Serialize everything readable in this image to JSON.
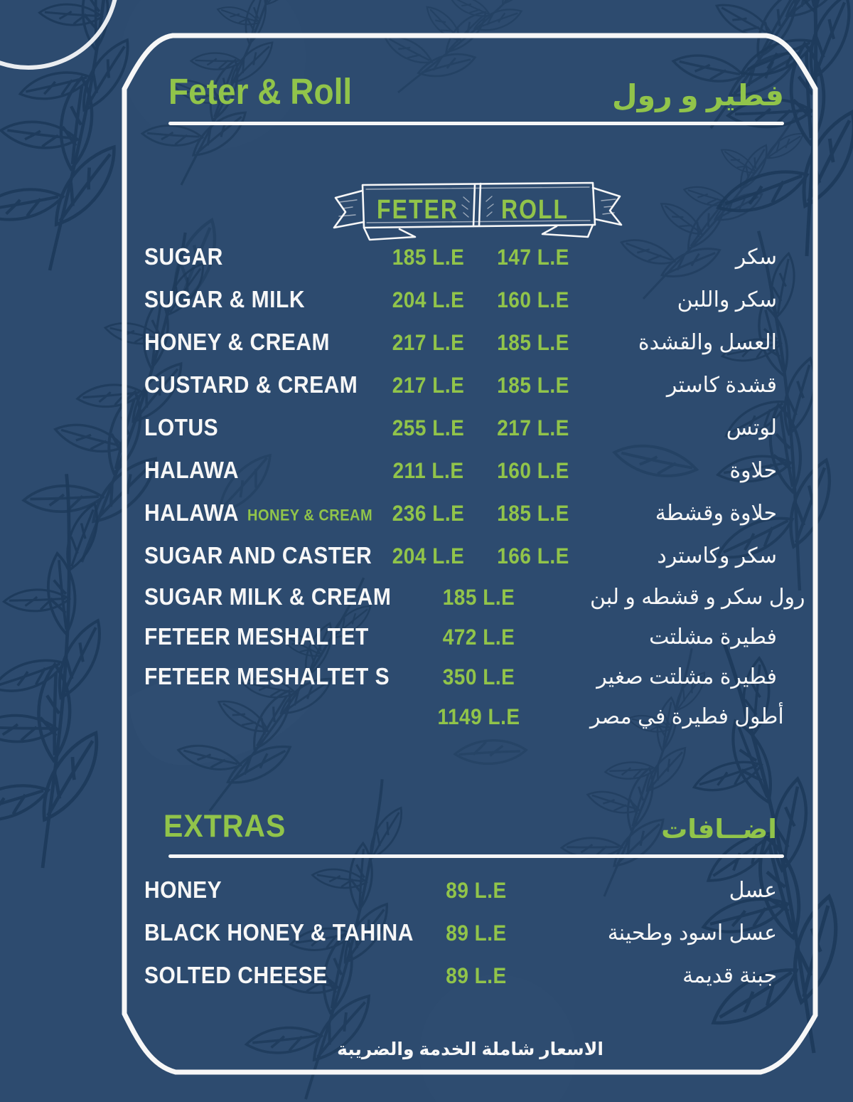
{
  "menu": {
    "title_en": "Feter & Roll",
    "title_ar": "فطير و رول",
    "columns": {
      "feter": "FETER",
      "roll": "ROLL"
    },
    "currency": "L.E",
    "items": [
      {
        "name_en": "SUGAR",
        "name_ar": "سكر",
        "feter": "185 L.E",
        "roll": "147 L.E"
      },
      {
        "name_en": "SUGAR & MILK",
        "name_ar": "سكر واللبن",
        "feter": "204 L.E",
        "roll": "160 L.E"
      },
      {
        "name_en": "HONEY & CREAM",
        "name_ar": "العسل والقشدة",
        "feter": "217 L.E",
        "roll": "185 L.E"
      },
      {
        "name_en": "CUSTARD & CREAM",
        "name_ar": "قشدة كاستر",
        "feter": "217 L.E",
        "roll": "185 L.E"
      },
      {
        "name_en": "LOTUS",
        "name_ar": "لوتس",
        "feter": "255 L.E",
        "roll": "217 L.E"
      },
      {
        "name_en": "HALAWA",
        "name_ar": "حلاوة",
        "feter": "211 L.E",
        "roll": "160 L.E"
      },
      {
        "name_en": "HALAWA",
        "name_en_sub": "HONEY & CREAM",
        "name_ar": "حلاوة وقشطة",
        "feter": "236 L.E",
        "roll": "185 L.E"
      },
      {
        "name_en": "SUGAR AND CASTER",
        "name_ar": "سكر وكاسترد",
        "feter": "204 L.E",
        "roll": "166 L.E"
      },
      {
        "name_en": "SUGAR MILK & CREAM",
        "name_ar": "رول سكر و قشطه و لبن",
        "single": "185 L.E"
      },
      {
        "name_en": "FETEER MESHALTET",
        "name_ar": "فطيرة مشلتت",
        "single": "472 L.E"
      },
      {
        "name_en": "FETEER MESHALTET S",
        "name_ar": "فطيرة مشلتت صغير",
        "single": "350 L.E"
      },
      {
        "name_en": "",
        "name_ar": "أطول فطيرة في مصر",
        "single": "1149 L.E"
      }
    ],
    "extras": {
      "title_en": "EXTRAS",
      "title_ar": "اضــافات",
      "items": [
        {
          "name_en": "HONEY",
          "name_ar": "عسل",
          "price": "89 L.E"
        },
        {
          "name_en": "BLACK HONEY & TAHINA",
          "name_ar": "عسل اسود وطحينة",
          "price": "89 L.E"
        },
        {
          "name_en": "SOLTED CHEESE",
          "name_ar": "جبنة قديمة",
          "price": "89 L.E"
        }
      ]
    },
    "footer_ar": "الاسعار شاملة الخدمة والضريبة"
  },
  "colors": {
    "background": "#2d4b6f",
    "accent_green": "#91c44a",
    "text_white": "#f7f7f7",
    "pattern_line": "#1d3a5a"
  }
}
